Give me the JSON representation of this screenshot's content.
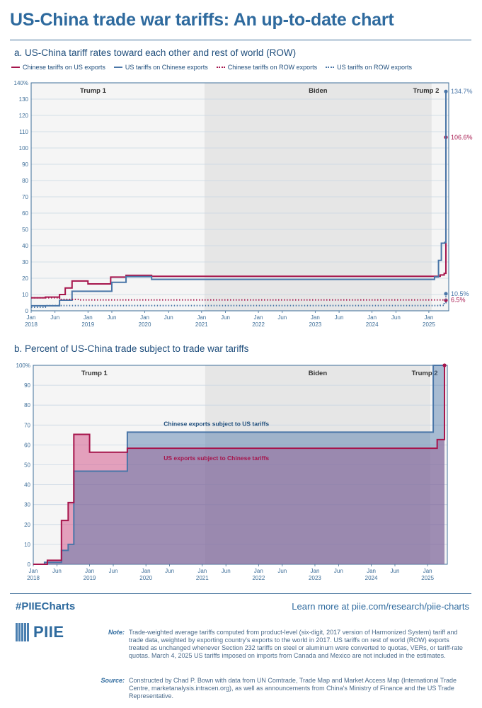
{
  "title": "US-China trade war tariffs: An up-to-date chart",
  "colors": {
    "crimson": "#a6154c",
    "blue": "#4a76a8",
    "navy": "#1e4d7b",
    "grid": "#c9d6e3",
    "shadeTrump1": "#f5f5f5",
    "shadeBiden": "#e6e6e6",
    "shadeTrump2": "#f5f5f5"
  },
  "panelA": {
    "title": "a. US-China tariff rates toward each other and rest of world (ROW)",
    "legend": [
      {
        "label": "Chinese tariffs on US exports",
        "color": "#a6154c",
        "style": "solid"
      },
      {
        "label": "US tariffs on Chinese exports",
        "color": "#4a76a8",
        "style": "solid"
      },
      {
        "label": "Chinese tariffs on ROW exports",
        "color": "#a6154c",
        "style": "dotted"
      },
      {
        "label": "US tariffs on ROW exports",
        "color": "#4a76a8",
        "style": "dotted"
      }
    ],
    "endLabels": {
      "usOnChina": "134.7%",
      "chinaOnUS": "106.6%",
      "usOnRow": "10.5%",
      "chinaOnRow": "6.5%"
    }
  },
  "panelB": {
    "title": "b. Percent of US-China trade subject to trade war tariffs",
    "labels": {
      "chinese": "Chinese exports subject to US tariffs",
      "us": "US exports subject to Chinese tariffs"
    }
  },
  "periods": [
    "Trump 1",
    "Biden",
    "Trump 2"
  ],
  "chart_data": [
    {
      "type": "line",
      "title": "a. US-China tariff rates toward each other and rest of world (ROW)",
      "xlabel": "",
      "ylabel": "",
      "xlim": [
        2018.0,
        2025.35
      ],
      "ylim": [
        0,
        140
      ],
      "yticks": [
        "0",
        "10",
        "20",
        "30",
        "40",
        "50",
        "60",
        "70",
        "80",
        "90",
        "100",
        "110",
        "120",
        "130",
        "140%"
      ],
      "xticks": [
        {
          "t": 2018.0,
          "label": "Jan",
          "year": "2018"
        },
        {
          "t": 2018.42,
          "label": "Jun",
          "year": ""
        },
        {
          "t": 2019.0,
          "label": "Jan",
          "year": "2019"
        },
        {
          "t": 2019.42,
          "label": "Jun",
          "year": ""
        },
        {
          "t": 2020.0,
          "label": "Jan",
          "year": "2020"
        },
        {
          "t": 2020.42,
          "label": "Jun",
          "year": ""
        },
        {
          "t": 2021.0,
          "label": "Jan",
          "year": "2021"
        },
        {
          "t": 2021.42,
          "label": "Jun",
          "year": ""
        },
        {
          "t": 2022.0,
          "label": "Jan",
          "year": "2022"
        },
        {
          "t": 2022.42,
          "label": "Jun",
          "year": ""
        },
        {
          "t": 2023.0,
          "label": "Jan",
          "year": "2023"
        },
        {
          "t": 2023.42,
          "label": "Jun",
          "year": ""
        },
        {
          "t": 2024.0,
          "label": "Jan",
          "year": "2024"
        },
        {
          "t": 2024.42,
          "label": "Jun",
          "year": ""
        },
        {
          "t": 2025.0,
          "label": "Jan",
          "year": "2025"
        }
      ],
      "periods": [
        {
          "name": "Trump 1",
          "start": 2018.0,
          "end": 2021.05
        },
        {
          "name": "Biden",
          "start": 2021.05,
          "end": 2025.05
        },
        {
          "name": "Trump 2",
          "start": 2025.05,
          "end": 2025.35
        }
      ],
      "series": [
        {
          "name": "Chinese tariffs on US exports",
          "color": "#a6154c",
          "style": "solid",
          "points": [
            [
              2018.0,
              8.0
            ],
            [
              2018.25,
              8.4
            ],
            [
              2018.5,
              10.0
            ],
            [
              2018.6,
              14.0
            ],
            [
              2018.72,
              18.3
            ],
            [
              2019.0,
              16.5
            ],
            [
              2019.4,
              20.7
            ],
            [
              2019.67,
              21.8
            ],
            [
              2020.12,
              21.2
            ],
            [
              2025.1,
              21.2
            ],
            [
              2025.2,
              22.0
            ],
            [
              2025.27,
              23.0
            ],
            [
              2025.3,
              106.6
            ]
          ]
        },
        {
          "name": "US tariffs on Chinese exports",
          "color": "#4a76a8",
          "style": "solid",
          "points": [
            [
              2018.0,
              3.1
            ],
            [
              2018.5,
              6.5
            ],
            [
              2018.72,
              12.0
            ],
            [
              2019.42,
              17.5
            ],
            [
              2019.67,
              21.0
            ],
            [
              2020.12,
              19.3
            ],
            [
              2025.1,
              20.8
            ],
            [
              2025.17,
              31.0
            ],
            [
              2025.22,
              41.5
            ],
            [
              2025.28,
              42.0
            ],
            [
              2025.3,
              134.7
            ]
          ]
        },
        {
          "name": "Chinese tariffs on ROW exports",
          "color": "#a6154c",
          "style": "dotted",
          "points": [
            [
              2018.0,
              8.0
            ],
            [
              2018.5,
              7.0
            ],
            [
              2018.85,
              6.7
            ],
            [
              2025.3,
              6.5
            ]
          ]
        },
        {
          "name": "US tariffs on ROW exports",
          "color": "#4a76a8",
          "style": "dotted",
          "points": [
            [
              2018.0,
              2.2
            ],
            [
              2018.25,
              3.2
            ],
            [
              2025.2,
              3.3
            ],
            [
              2025.27,
              5.0
            ],
            [
              2025.3,
              10.5
            ]
          ]
        }
      ]
    },
    {
      "type": "area",
      "title": "b. Percent of US-China trade subject to trade war tariffs",
      "xlabel": "",
      "ylabel": "",
      "xlim": [
        2018.0,
        2025.35
      ],
      "ylim": [
        0,
        100
      ],
      "yticks": [
        "0",
        "10",
        "20",
        "30",
        "40",
        "50",
        "60",
        "70",
        "80",
        "90",
        "100%"
      ],
      "xticks": [
        {
          "t": 2018.0,
          "label": "Jan",
          "year": "2018"
        },
        {
          "t": 2018.42,
          "label": "Jun",
          "year": ""
        },
        {
          "t": 2019.0,
          "label": "Jan",
          "year": "2019"
        },
        {
          "t": 2019.42,
          "label": "Jun",
          "year": ""
        },
        {
          "t": 2020.0,
          "label": "Jan",
          "year": "2020"
        },
        {
          "t": 2020.42,
          "label": "Jun",
          "year": ""
        },
        {
          "t": 2021.0,
          "label": "Jan",
          "year": "2021"
        },
        {
          "t": 2021.42,
          "label": "Jun",
          "year": ""
        },
        {
          "t": 2022.0,
          "label": "Jan",
          "year": "2022"
        },
        {
          "t": 2022.42,
          "label": "Jun",
          "year": ""
        },
        {
          "t": 2023.0,
          "label": "Jan",
          "year": "2023"
        },
        {
          "t": 2023.42,
          "label": "Jun",
          "year": ""
        },
        {
          "t": 2024.0,
          "label": "Jan",
          "year": "2024"
        },
        {
          "t": 2024.42,
          "label": "Jun",
          "year": ""
        },
        {
          "t": 2025.0,
          "label": "Jan",
          "year": "2025"
        }
      ],
      "periods": [
        {
          "name": "Trump 1",
          "start": 2018.0,
          "end": 2021.05
        },
        {
          "name": "Biden",
          "start": 2021.05,
          "end": 2025.05
        },
        {
          "name": "Trump 2",
          "start": 2025.05,
          "end": 2025.35
        }
      ],
      "series": [
        {
          "name": "Chinese exports subject to US tariffs",
          "color": "#4a76a8",
          "steps": [
            [
              2018.0,
              0.0
            ],
            [
              2018.2,
              1.0
            ],
            [
              2018.5,
              7.0
            ],
            [
              2018.62,
              10.0
            ],
            [
              2018.72,
              46.8
            ],
            [
              2019.67,
              66.4
            ],
            [
              2025.1,
              100.0
            ]
          ],
          "end": 2025.3
        },
        {
          "name": "US exports subject to Chinese tariffs",
          "color": "#a6154c",
          "steps": [
            [
              2018.0,
              0.0
            ],
            [
              2018.25,
              2.0
            ],
            [
              2018.5,
              22.0
            ],
            [
              2018.62,
              31.0
            ],
            [
              2018.72,
              65.3
            ],
            [
              2019.0,
              56.3
            ],
            [
              2019.67,
              58.3
            ],
            [
              2025.17,
              62.7
            ],
            [
              2025.3,
              100.0
            ]
          ],
          "end": 2025.3
        }
      ]
    }
  ],
  "footer": {
    "hashtag": "#PIIECharts",
    "learnMore": "Learn more at piie.com/research/piie-charts",
    "logo": "PIIE",
    "noteLabel": "Note:",
    "note": "Trade-weighted average tariffs computed from product-level (six-digit, 2017 version of Harmonized System) tariff and trade data, weighted by exporting country's exports to the world in 2017. US tariffs on rest of world (ROW) exports treated as unchanged whenever Section 232 tariffs on steel or aluminum were converted to quotas, VERs, or tariff-rate quotas. March 4, 2025 US tariffs imposed on imports from Canada and Mexico are not included in the estimates.",
    "sourceLabel": "Source:",
    "source": "Constructed by Chad P. Bown with data from UN Comtrade, Trade Map and Market Access Map (International Trade Centre, marketanalysis.intracen.org), as well as announcements from China's Ministry of Finance and the US Trade Representative."
  }
}
